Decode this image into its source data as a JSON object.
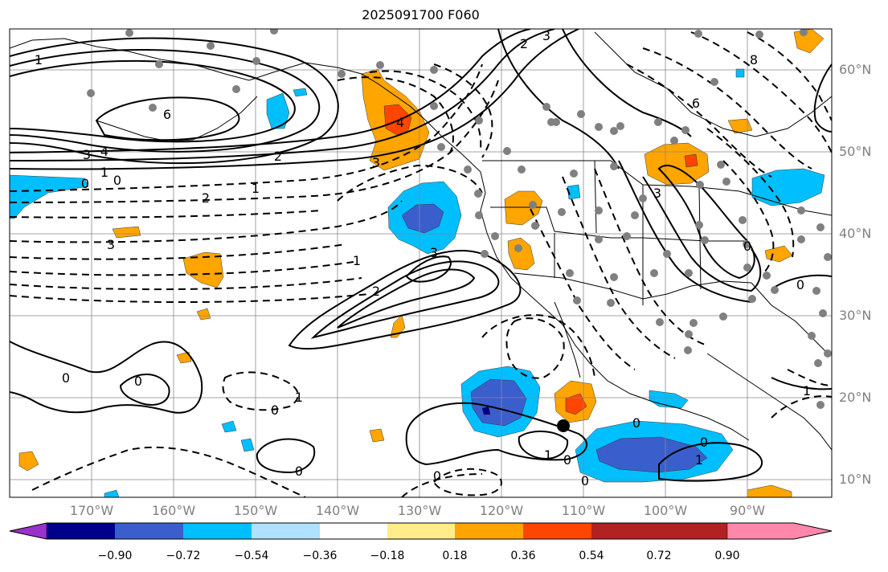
{
  "title": "2025091700 F060",
  "lat_labels": [
    {
      "text": "60°N"
    },
    {
      "text": "50°N"
    },
    {
      "text": "40°N"
    },
    {
      "text": "30°N"
    },
    {
      "text": "20°N"
    },
    {
      "text": "10°N"
    }
  ],
  "lon_labels": [
    {
      "text": "170°W"
    },
    {
      "text": "160°W"
    },
    {
      "text": "150°W"
    },
    {
      "text": "140°W"
    },
    {
      "text": "130°W"
    },
    {
      "text": "120°W"
    },
    {
      "text": "110°W"
    },
    {
      "text": "100°W"
    },
    {
      "text": "90°W"
    }
  ],
  "colorbar": {
    "ticks": [
      "−0.90",
      "−0.72",
      "−0.54",
      "−0.36",
      "−0.18",
      "0.18",
      "0.36",
      "0.54",
      "0.72",
      "0.90"
    ],
    "colors": [
      "#9932cc",
      "#00008b",
      "#3a5fcd",
      "#00bfff",
      "#b0e2ff",
      "#ffffff",
      "#ffec8b",
      "#ffa500",
      "#ff4500",
      "#b22222",
      "#ff88aa"
    ]
  },
  "contour_labels": [
    {
      "text": "1"
    },
    {
      "text": "6"
    },
    {
      "text": "3"
    },
    {
      "text": "4"
    },
    {
      "text": "1"
    },
    {
      "text": "0"
    },
    {
      "text": "0"
    },
    {
      "text": "2"
    },
    {
      "text": "2"
    },
    {
      "text": "1"
    },
    {
      "text": "3"
    },
    {
      "text": "3"
    },
    {
      "text": "1"
    },
    {
      "text": "2"
    },
    {
      "text": "3"
    },
    {
      "text": "4"
    },
    {
      "text": "3"
    },
    {
      "text": "2"
    },
    {
      "text": "8"
    },
    {
      "text": "6"
    },
    {
      "text": "3"
    },
    {
      "text": "0"
    },
    {
      "text": "0"
    },
    {
      "text": "0"
    },
    {
      "text": "0"
    },
    {
      "text": "1"
    },
    {
      "text": "0"
    },
    {
      "text": "0"
    },
    {
      "text": "1"
    },
    {
      "text": "0"
    },
    {
      "text": "0"
    },
    {
      "text": "0"
    },
    {
      "text": "1"
    },
    {
      "text": "0"
    },
    {
      "text": "1"
    },
    {
      "text": "0"
    }
  ],
  "storm_marker": "tropical-cyclone-center"
}
